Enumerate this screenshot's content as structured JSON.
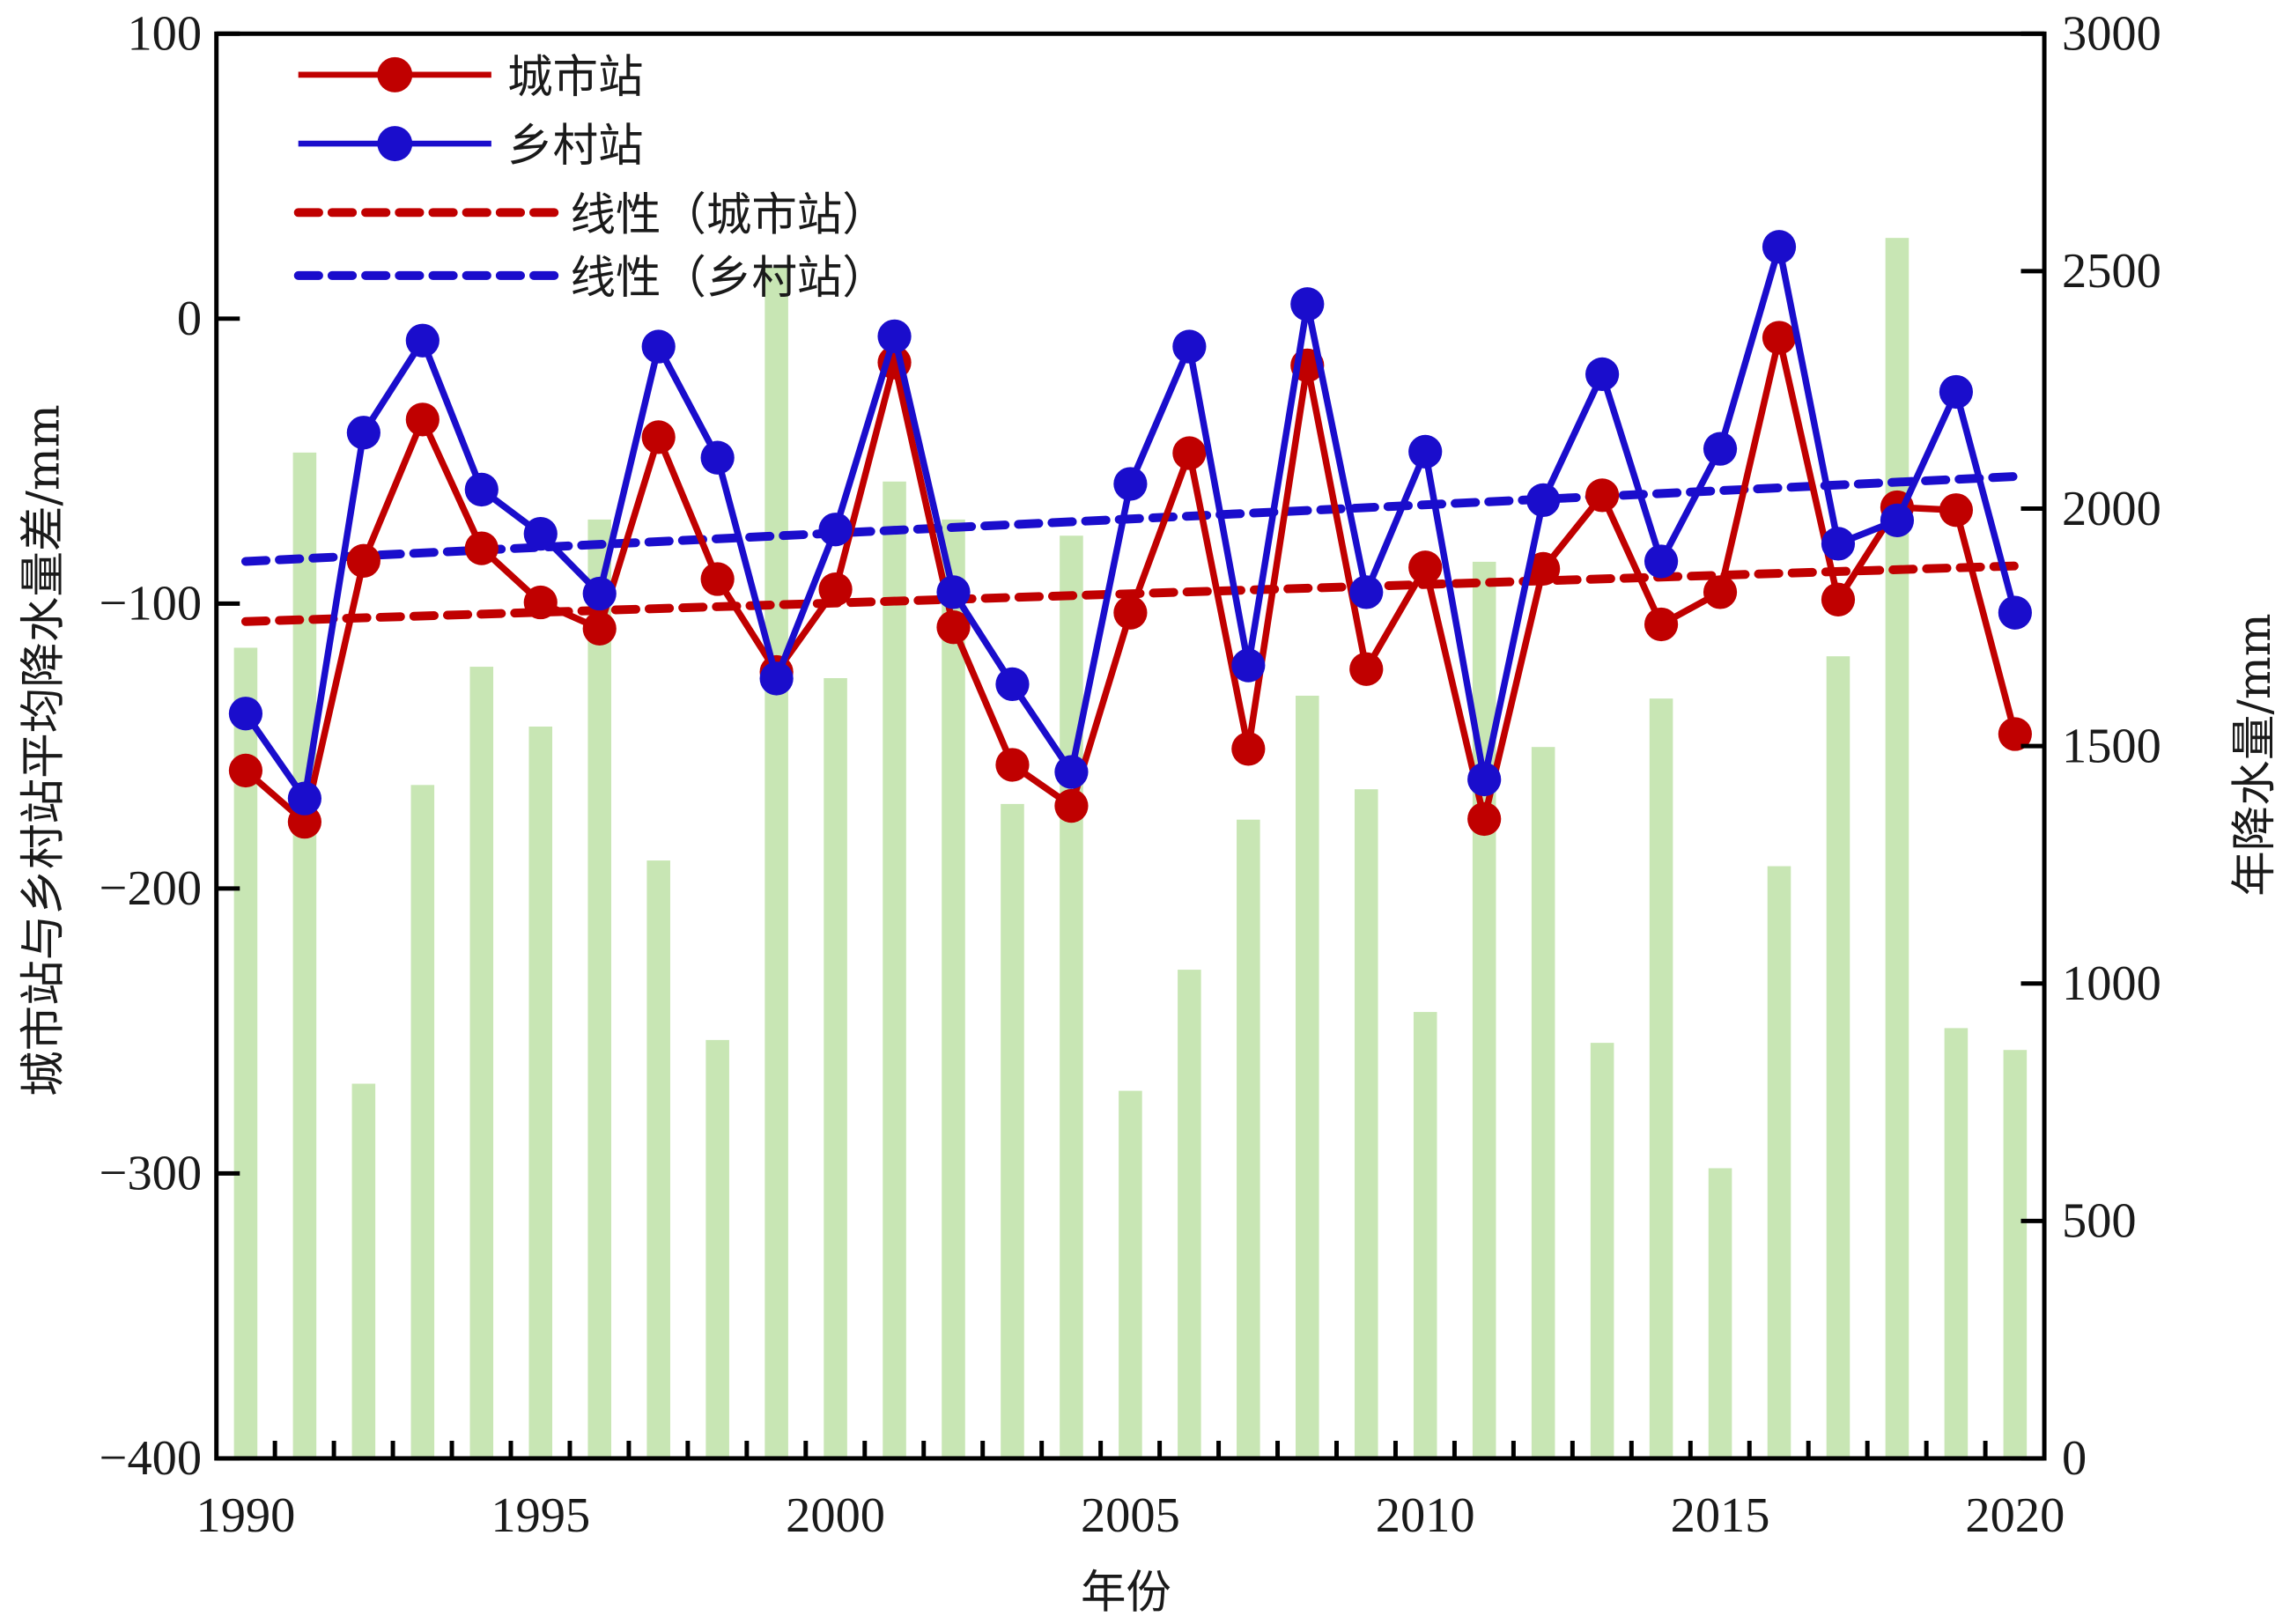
{
  "chart_data": {
    "type": "bar+line",
    "title": "",
    "xlabel": "年份",
    "ylabel_left": "城市站与乡村站平均降水量差/mm",
    "ylabel_right": "年降水量/mm",
    "ylim_left": [
      -400,
      100
    ],
    "ylim_right": [
      0,
      3000
    ],
    "xlim": [
      1990,
      2020
    ],
    "x_ticks": [
      "1990",
      "1995",
      "2000",
      "2005",
      "2010",
      "2015",
      "2020"
    ],
    "y_left_ticks": [
      "100",
      "0",
      "−100",
      "−200",
      "−300",
      "−400"
    ],
    "y_left_tick_values": [
      100,
      0,
      -100,
      -200,
      -300,
      -400
    ],
    "y_right_ticks": [
      "3000",
      "2500",
      "2000",
      "1500",
      "1000",
      "500",
      "0"
    ],
    "y_right_tick_values": [
      3000,
      2500,
      2000,
      1500,
      1000,
      500,
      0
    ],
    "x": [
      1990,
      1991,
      1992,
      1993,
      1994,
      1995,
      1996,
      1997,
      1998,
      1999,
      2000,
      2001,
      2002,
      2003,
      2004,
      2005,
      2006,
      2007,
      2008,
      2009,
      2010,
      2011,
      2012,
      2013,
      2014,
      2015,
      2016,
      2017,
      2018,
      2019,
      2020
    ],
    "bars": {
      "name": "年降水量",
      "axis": "right",
      "color": "#c8e6b4",
      "values": [
        1707,
        2118,
        789,
        1418,
        1667,
        1541,
        1977,
        1259,
        881,
        2508,
        1643,
        2057,
        1977,
        1378,
        1943,
        774,
        1029,
        1345,
        1606,
        1409,
        940,
        1888,
        1498,
        875,
        1600,
        611,
        1247,
        1689,
        2570,
        906,
        860
      ]
    },
    "series": [
      {
        "name": "城市站",
        "axis": "left",
        "color": "#c00000",
        "style": "line-marker",
        "values": [
          -158.6,
          -176.6,
          -85,
          -35.4,
          -80.6,
          -99.6,
          -108.8,
          -41.6,
          -91.4,
          -124,
          -95,
          -15.4,
          -108.3,
          -156.6,
          -171,
          -103.2,
          -47.2,
          -151,
          -16.4,
          -123,
          -87.3,
          -175.6,
          -87.8,
          -62,
          -107.3,
          -96,
          -6.7,
          -98.6,
          -66.2,
          -67.2,
          -145.8
        ]
      },
      {
        "name": "乡村站",
        "axis": "left",
        "color": "#1a0dcc",
        "style": "line-marker",
        "values": [
          -138.6,
          -168.4,
          -40,
          -7.7,
          -60,
          -75.5,
          -96.5,
          -9.8,
          -48.8,
          -126.3,
          -74,
          -6.2,
          -96,
          -128.3,
          -159.1,
          -58,
          -9.8,
          -121.7,
          5.1,
          -96,
          -46.7,
          -161.7,
          -63.7,
          -19.5,
          -85.2,
          -45.7,
          25.2,
          -79,
          -70.8,
          -25.7,
          -103.2
        ]
      }
    ],
    "trendlines": [
      {
        "name": "线性（城市站）",
        "color": "#c00000",
        "start": -106.3,
        "end": -86.8
      },
      {
        "name": "线性（乡村站）",
        "color": "#1a0dcc",
        "start": -85.2,
        "end": -55.4
      }
    ],
    "legend": {
      "position": "top-left",
      "entries": [
        "城市站",
        "乡村站",
        "线性（城市站）",
        "线性（乡村站）"
      ]
    },
    "grid": false
  }
}
